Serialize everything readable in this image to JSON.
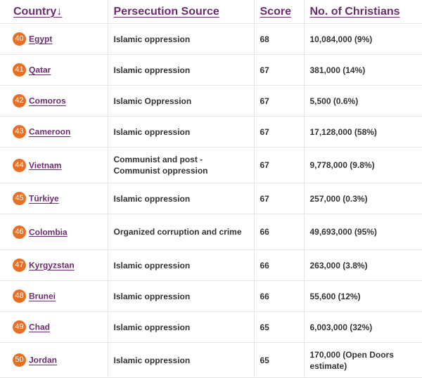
{
  "table": {
    "headers": {
      "country": "Country",
      "sort_arrow": "↓",
      "source": "Persecution Source",
      "score": "Score",
      "christians": "No. of Christians"
    },
    "rows": [
      {
        "rank": "40",
        "country": "Egypt",
        "source": "Islamic oppression",
        "score": "68",
        "christians": "10,084,000 (9%)"
      },
      {
        "rank": "41",
        "country": "Qatar",
        "source": "Islamic oppression",
        "score": "67",
        "christians": "381,000 (14%)"
      },
      {
        "rank": "42",
        "country": "Comoros",
        "source": "Islamic Oppression",
        "score": "67",
        "christians": "5,500 (0.6%)"
      },
      {
        "rank": "43",
        "country": "Cameroon",
        "source": "Islamic oppression",
        "score": "67",
        "christians": "17,128,000 (58%)"
      },
      {
        "rank": "44",
        "country": "Vietnam",
        "source": "Communist and post - Communist oppression",
        "score": "67",
        "christians": "9,778,000 (9.8%)"
      },
      {
        "rank": "45",
        "country": "Türkiye",
        "source": "Islamic oppression",
        "score": "67",
        "christians": "257,000 (0.3%)"
      },
      {
        "rank": "46",
        "country": "Colombia",
        "source": "Organized corruption and crime",
        "score": "66",
        "christians": "49,693,000 (95%)"
      },
      {
        "rank": "47",
        "country": "Kyrgyzstan",
        "source": "Islamic oppression",
        "score": "66",
        "christians": "263,000 (3.8%)"
      },
      {
        "rank": "48",
        "country": "Brunei",
        "source": "Islamic oppression",
        "score": "66",
        "christians": "55,600 (12%)"
      },
      {
        "rank": "49",
        "country": "Chad",
        "source": "Islamic oppression",
        "score": "65",
        "christians": "6,003,000 (32%)"
      },
      {
        "rank": "50",
        "country": "Jordan",
        "source": "Islamic oppression",
        "score": "65",
        "christians": "170,000 (Open Doors estimate)"
      }
    ]
  },
  "colors": {
    "header_text": "#6b2d6c",
    "link": "#6b2d6c",
    "rank_badge": "#e86f24",
    "body_text": "#333333",
    "grid": "#e6e6e6"
  }
}
